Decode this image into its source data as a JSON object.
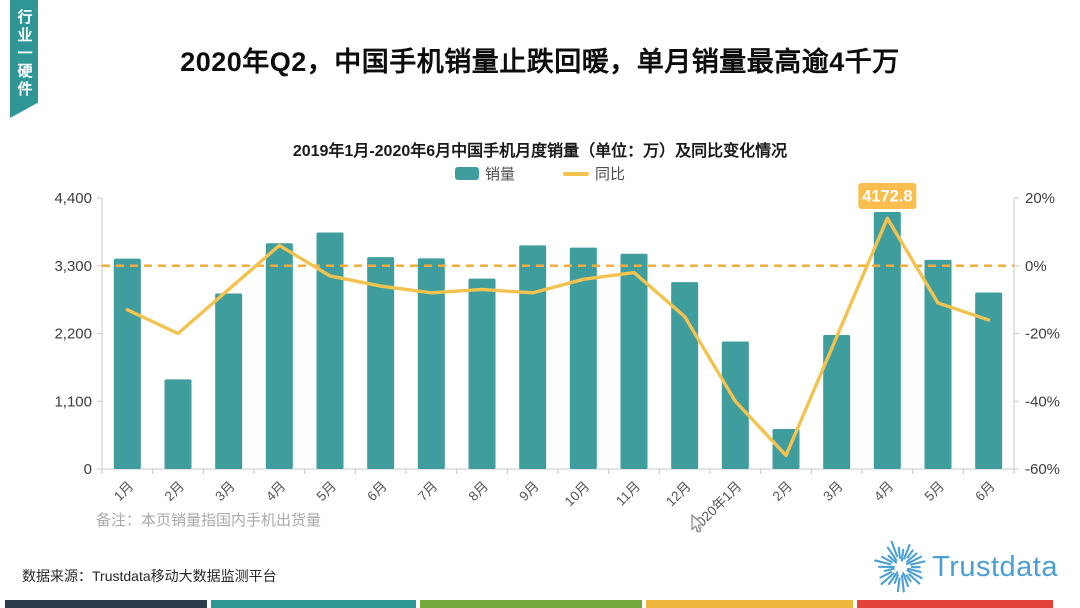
{
  "page": {
    "ribbon_text": "行业一硬件",
    "ribbon_color": "#2f9695",
    "title": "2020年Q2，中国手机销量止跌回暖，单月销量最高逾4千万",
    "note": "备注：本页销量指国内手机出货量",
    "source": "数据来源：Trustdata移动大数据监测平台",
    "logo_text": "Trustdata",
    "logo_color": "#4b9fd4"
  },
  "chart_data": {
    "type": "bar",
    "subtype": "bar+line combo, dual y-axis",
    "title": "2019年1月-2020年6月中国手机月度销量（单位：万）及同比变化情况",
    "categories": [
      "1月",
      "2月",
      "3月",
      "4月",
      "5月",
      "6月",
      "7月",
      "8月",
      "9月",
      "10月",
      "11月",
      "12月",
      "2020年1月",
      "2月",
      "3月",
      "4月",
      "5月",
      "6月"
    ],
    "series": [
      {
        "name": "销量",
        "type": "bar",
        "yaxis": "left",
        "unit": "万",
        "color": "#3f9e9d",
        "values": [
          3415,
          1455,
          2850,
          3665,
          3840,
          3440,
          3420,
          3090,
          3630,
          3595,
          3495,
          3035,
          2070,
          650,
          2175,
          4172.8,
          3395,
          2865
        ]
      },
      {
        "name": "同比",
        "type": "line",
        "yaxis": "right",
        "unit": "%",
        "color": "#f4c24f",
        "values": [
          -13,
          -20,
          -7,
          6,
          -3,
          -6,
          -8,
          -7,
          -8,
          -4,
          -2,
          -15,
          -40,
          -56,
          -21,
          14,
          -11,
          -16
        ]
      }
    ],
    "y_left": {
      "min": 0,
      "max": 4400,
      "tick_values": [
        0,
        1100,
        2200,
        3300,
        4400
      ],
      "tick_labels": [
        "0",
        "1,100",
        "2,200",
        "3,300",
        "4,400"
      ]
    },
    "y_right": {
      "min": -60,
      "max": 20,
      "tick_values": [
        -60,
        -40,
        -20,
        0,
        20
      ],
      "tick_labels": [
        "-60%",
        "-40%",
        "-20%",
        "0%",
        "20%"
      ]
    },
    "annotation": {
      "text": "4172.8",
      "category_index": 15,
      "bg_color": "#f9be4e",
      "text_color": "#ffffff"
    },
    "reference_line": {
      "axis": "right",
      "value": 0,
      "style": "dashed",
      "color": "#f5ac3d"
    },
    "legend": [
      {
        "label": "销量",
        "marker": "square",
        "color": "#3f9e9d"
      },
      {
        "label": "同比",
        "marker": "line",
        "color": "#f4c24f"
      }
    ],
    "legend_position": "top-center",
    "grid": false,
    "axis_color": "#c9c9c9",
    "tick_label_color": "#3d3d3d",
    "x_label_color": "#555555",
    "x_label_rotation": -45
  },
  "footer": {
    "strip_colors": [
      "#2c3a4d",
      "#2f9793",
      "#74a93e",
      "#efb63e",
      "#e2443b"
    ],
    "strip_widths": [
      202,
      205,
      222,
      207,
      196
    ]
  }
}
